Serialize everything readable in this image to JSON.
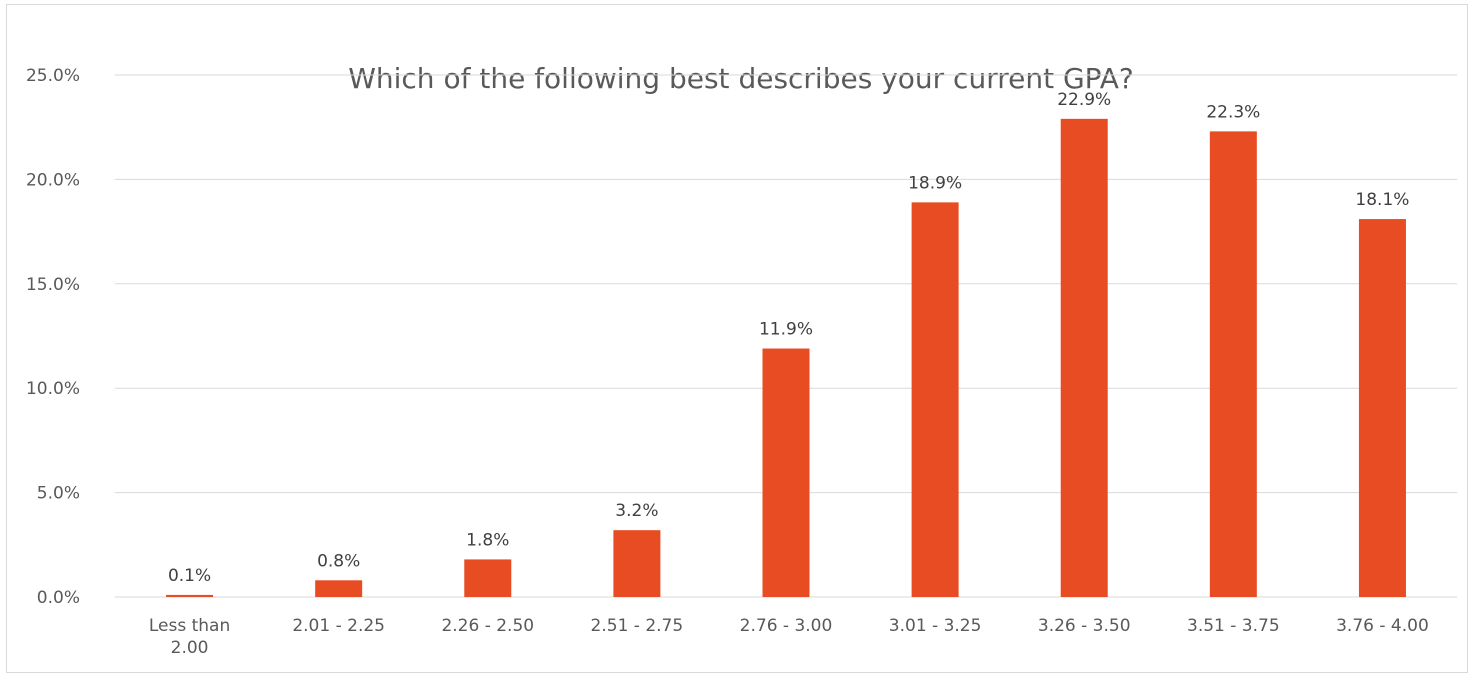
{
  "chart_data": {
    "type": "bar",
    "title": "Which of the following best describes your current GPA?",
    "xlabel": "",
    "ylabel": "",
    "categories": [
      [
        "Less than",
        "2.00"
      ],
      [
        "2.01 - 2.25"
      ],
      [
        "2.26 - 2.50"
      ],
      [
        "2.51 - 2.75"
      ],
      [
        "2.76 - 3.00"
      ],
      [
        "3.01 - 3.25"
      ],
      [
        "3.26 - 3.50"
      ],
      [
        "3.51 - 3.75"
      ],
      [
        "3.76 - 4.00"
      ]
    ],
    "values": [
      0.1,
      0.8,
      1.8,
      3.2,
      11.9,
      18.9,
      22.9,
      22.3,
      18.1
    ],
    "data_labels": [
      "0.1%",
      "0.8%",
      "1.8%",
      "3.2%",
      "11.9%",
      "18.9%",
      "22.9%",
      "22.3%",
      "18.1%"
    ],
    "ylim": [
      0,
      25
    ],
    "yticks": [
      0,
      5,
      10,
      15,
      20,
      25
    ],
    "ytick_labels": [
      "0.0%",
      "5.0%",
      "10.0%",
      "15.0%",
      "20.0%",
      "25.0%"
    ],
    "grid": true,
    "legend": "none",
    "bar_color": "#e84c22",
    "grid_color": "#d9d9d9"
  }
}
